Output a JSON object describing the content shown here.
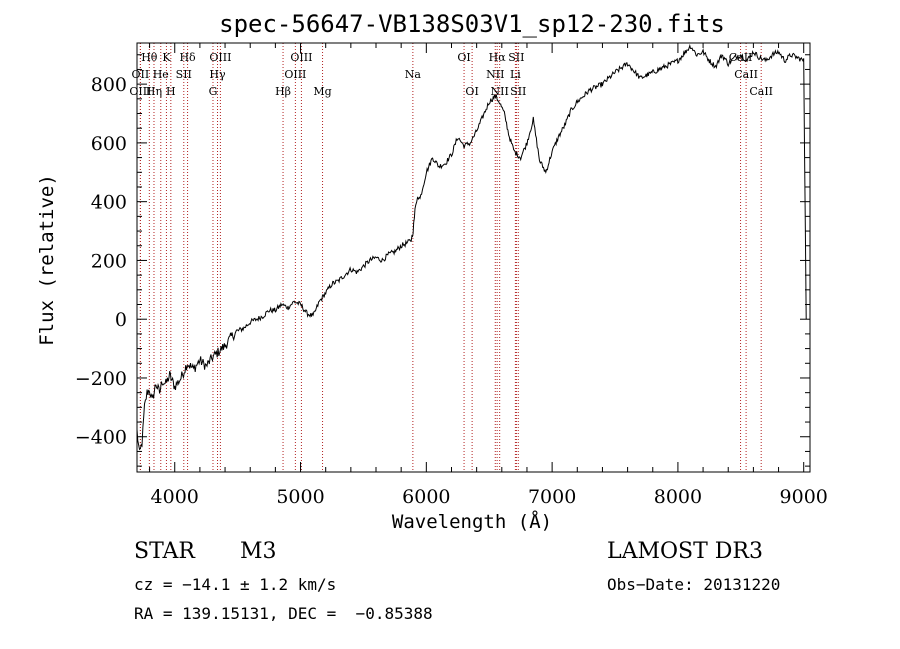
{
  "chart_data": {
    "type": "line",
    "title": "spec-56647-VB138S03V1_sp12-230.fits",
    "xlabel": "Wavelength (Å)",
    "ylabel": "Flux (relative)",
    "xlim": [
      3700,
      9050
    ],
    "ylim": [
      -520,
      940
    ],
    "x_ticks": [
      4000,
      5000,
      6000,
      7000,
      8000,
      9000
    ],
    "y_ticks": [
      -400,
      -200,
      0,
      200,
      400,
      600,
      800
    ],
    "series": [
      {
        "name": "flux",
        "x": [
          3700,
          3720,
          3740,
          3760,
          3780,
          3800,
          3820,
          3850,
          3880,
          3900,
          3930,
          3960,
          4000,
          4050,
          4100,
          4150,
          4200,
          4250,
          4300,
          4350,
          4400,
          4450,
          4500,
          4550,
          4600,
          4650,
          4700,
          4750,
          4800,
          4850,
          4900,
          4950,
          5000,
          5050,
          5100,
          5150,
          5200,
          5250,
          5300,
          5350,
          5400,
          5450,
          5500,
          5550,
          5600,
          5650,
          5700,
          5750,
          5800,
          5850,
          5880,
          5895,
          5910,
          5930,
          5950,
          6000,
          6050,
          6100,
          6150,
          6200,
          6250,
          6300,
          6350,
          6400,
          6450,
          6500,
          6550,
          6580,
          6620,
          6660,
          6700,
          6750,
          6800,
          6850,
          6900,
          6950,
          7000,
          7050,
          7100,
          7150,
          7200,
          7300,
          7400,
          7500,
          7600,
          7700,
          7800,
          7900,
          8000,
          8100,
          8150,
          8200,
          8250,
          8300,
          8350,
          8400,
          8450,
          8500,
          8550,
          8600,
          8650,
          8700,
          8750,
          8800,
          8850,
          8900,
          8950,
          9000,
          9020
        ],
        "values": [
          -380,
          -460,
          -420,
          -300,
          -250,
          -240,
          -280,
          -220,
          -250,
          -210,
          -220,
          -190,
          -230,
          -200,
          -150,
          -170,
          -140,
          -160,
          -130,
          -110,
          -90,
          -60,
          -40,
          -30,
          -10,
          0,
          10,
          30,
          30,
          50,
          40,
          60,
          50,
          20,
          10,
          60,
          90,
          120,
          130,
          150,
          170,
          160,
          180,
          200,
          210,
          200,
          220,
          230,
          250,
          260,
          270,
          300,
          370,
          420,
          410,
          500,
          550,
          520,
          530,
          560,
          620,
          590,
          600,
          640,
          690,
          740,
          760,
          740,
          700,
          620,
          570,
          550,
          600,
          680,
          540,
          500,
          570,
          620,
          660,
          710,
          740,
          780,
          800,
          840,
          870,
          820,
          840,
          860,
          880,
          930,
          900,
          910,
          880,
          860,
          900,
          870,
          890,
          900,
          880,
          910,
          890,
          880,
          900,
          910,
          880,
          900,
          890,
          880,
          0
        ]
      }
    ],
    "lines": [
      {
        "label": "Hθ",
        "x": 3798,
        "row": 1
      },
      {
        "label": "K",
        "x": 3934,
        "row": 1
      },
      {
        "label": "Hδ",
        "x": 4102,
        "row": 1
      },
      {
        "label": "OIII",
        "x": 4363,
        "row": 1
      },
      {
        "label": "OIII",
        "x": 5007,
        "row": 1
      },
      {
        "label": "OI",
        "x": 6300,
        "row": 1
      },
      {
        "label": "Hα",
        "x": 6563,
        "row": 1
      },
      {
        "label": "SII",
        "x": 6716,
        "row": 1
      },
      {
        "label": "CaII",
        "x": 8498,
        "row": 1
      },
      {
        "label": "OII",
        "x": 3727,
        "row": 2
      },
      {
        "label": "He",
        "x": 3889,
        "row": 2
      },
      {
        "label": "SII",
        "x": 4072,
        "row": 2
      },
      {
        "label": "Hγ",
        "x": 4340,
        "row": 2
      },
      {
        "label": "OIII",
        "x": 4959,
        "row": 2
      },
      {
        "label": "Na",
        "x": 5893,
        "row": 2
      },
      {
        "label": "NII",
        "x": 6548,
        "row": 2
      },
      {
        "label": "Li",
        "x": 6708,
        "row": 2
      },
      {
        "label": "CaII",
        "x": 8542,
        "row": 2
      },
      {
        "label": "OIII",
        "x": 3727,
        "row": 3
      },
      {
        "label": "Hη",
        "x": 3835,
        "row": 3
      },
      {
        "label": "H",
        "x": 3969,
        "row": 3
      },
      {
        "label": "G",
        "x": 4304,
        "row": 3
      },
      {
        "label": "Hβ",
        "x": 4861,
        "row": 3
      },
      {
        "label": "Mg",
        "x": 5175,
        "row": 3
      },
      {
        "label": "OI",
        "x": 6364,
        "row": 3
      },
      {
        "label": "NII",
        "x": 6583,
        "row": 3
      },
      {
        "label": "SII",
        "x": 6731,
        "row": 3
      },
      {
        "label": "CaII",
        "x": 8662,
        "row": 3
      }
    ],
    "colors": {
      "spectrum": "#000000",
      "marker_line": "#b22222"
    }
  },
  "info": {
    "object_class": "STAR",
    "subclass": "M3",
    "survey": "LAMOST DR3",
    "redshift": "cz = −14.1 ± 1.2 km/s",
    "obs_date": "Obs−Date: 20131220",
    "coords": "RA = 139.15131, DEC =  −0.85388"
  }
}
